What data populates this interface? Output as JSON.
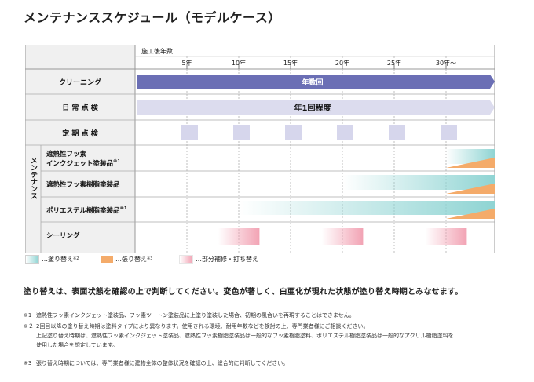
{
  "title": "メンテナンススケジュール（モデルケース）",
  "axis": {
    "label": "施工後年数",
    "ticks": [
      {
        "label": "5年",
        "year": 5
      },
      {
        "label": "10年",
        "year": 10
      },
      {
        "label": "15年",
        "year": 15
      },
      {
        "label": "20年",
        "year": 20
      },
      {
        "label": "25年",
        "year": 25
      },
      {
        "label": "30年〜",
        "year": 30
      }
    ]
  },
  "rows": {
    "cleaning": {
      "label": "クリーニング",
      "bar_text": "年数回"
    },
    "daily": {
      "label": "日 常 点 検",
      "bar_text": "年1回程度"
    },
    "periodic": {
      "label": "定 期 点 検",
      "years": [
        5,
        10,
        15,
        20,
        25,
        30
      ]
    },
    "group_label": "メンテナンス",
    "m1": {
      "label1": "遮熱性フッ素",
      "label2": "インクジェット塗装品",
      "sup": "※1"
    },
    "m2": {
      "label": "遮熱性フッ素樹脂塗装品"
    },
    "m3": {
      "label": "ポリエステル樹脂塗装品",
      "sup": "※1"
    },
    "seal": {
      "label": "シーリング"
    }
  },
  "maintenance": {
    "m1": {
      "repaint_from": 30,
      "overcoat_from": 30
    },
    "m2": {
      "repaint_from": 20,
      "overcoat_from": 30
    },
    "m3": {
      "repaint_from": 10,
      "overcoat_from": 30
    },
    "seal": {
      "partial_repair": [
        [
          8,
          12
        ],
        [
          18,
          22
        ],
        [
          28,
          32
        ]
      ]
    }
  },
  "legend": {
    "repaint": "…塗り替え",
    "repaint_sup": "※2",
    "overcoat": "…張り替え",
    "overcoat_sup": "※3",
    "partial": "…部分補修・打ち替え"
  },
  "lead": "塗り替えは、表面状態を確認の上で判断してください。変色が著しく、白亜化が現れた状態が塗り替え時期とみなせます。",
  "notes": {
    "n1": {
      "mark": "※1",
      "text": "遮熱性フッ素インクジェット塗装品、フッ素ツートン塗装品に上塗り塗装した場合、初期の風合いを再現することはできません。"
    },
    "n2": {
      "mark": "※２",
      "line1": "2回目以降の塗り替え時期は塗料タイプにより異なります。使用される環境、耐用年数などを検討の上、専門業者様にご相談ください。",
      "line2": "上記塗り替え時期は、遮熱性フッ素インクジェット塗装品、遮熱性フッ素樹脂塗装品は一般的なフッ素樹脂塗料、ポリエステル樹脂塗装品は一般的なアクリル樹脂塗料を",
      "line3": "使用した場合を想定しています。"
    },
    "n3": {
      "mark": "※3",
      "text": "張り替え時期については、専門業者様に建物全体の整体状況を確認の上、総合的に判断してください。"
    }
  },
  "colors": {
    "cleaning_bar": "#6b6fb5",
    "daily_bar": "#dcdcee",
    "periodic_block": "#d6d6ec",
    "repaint": "#8fd4d3",
    "overcoat": "#f4ab6a",
    "partial": "#f2a3b4",
    "header_fill": "#f0f0f0",
    "grid": "#999999"
  }
}
